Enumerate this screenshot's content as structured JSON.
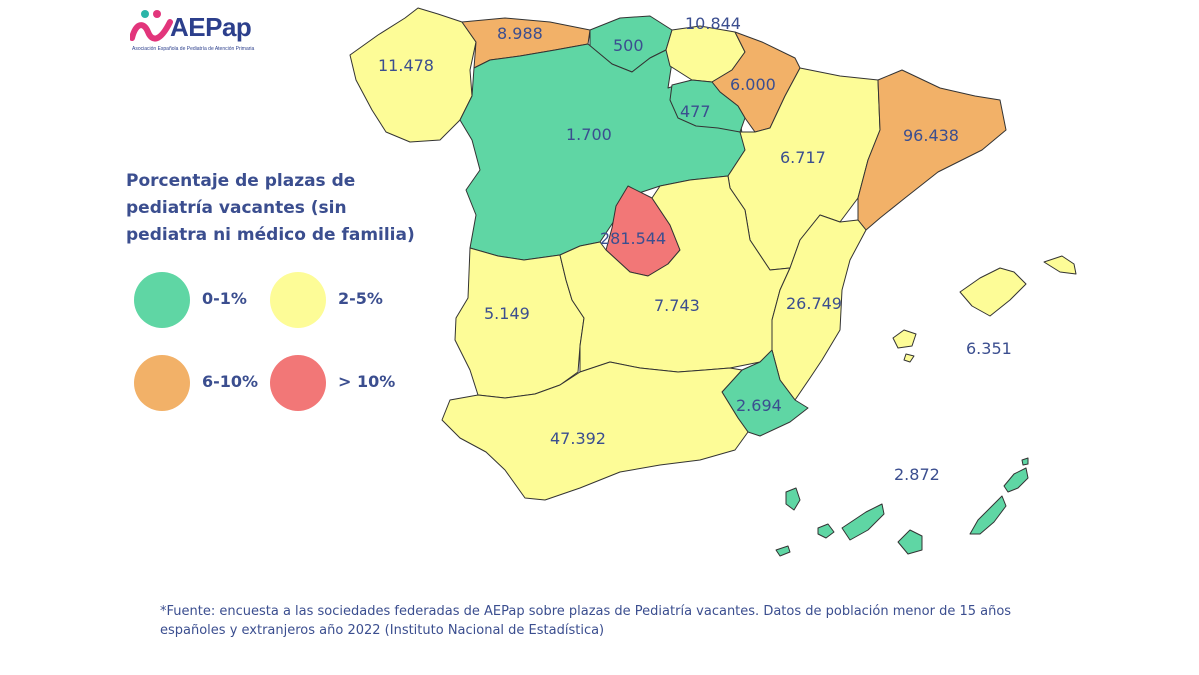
{
  "logo": {
    "text": "AEPap",
    "subtitle": "Asociación Española de Pediatría de Atención Primaria"
  },
  "legend": {
    "title": "Porcentaje de plazas de pediatría vacantes (sin pediatra ni médico de familia)",
    "items": [
      {
        "label": "0-1%",
        "color": "#5fd6a4"
      },
      {
        "label": "2-5%",
        "color": "#fdfc97"
      },
      {
        "label": "6-10%",
        "color": "#f2b168"
      },
      {
        "label": "> 10%",
        "color": "#f27777"
      }
    ]
  },
  "regions": [
    {
      "name": "Galicia",
      "value": "11.478",
      "category": "2-5%"
    },
    {
      "name": "Asturias",
      "value": "8.988",
      "category": "6-10%"
    },
    {
      "name": "Cantabria",
      "value": "500",
      "category": "0-1%"
    },
    {
      "name": "País Vasco",
      "value": "10.844",
      "category": "2-5%"
    },
    {
      "name": "Navarra",
      "value": "6.000",
      "category": "6-10%"
    },
    {
      "name": "La Rioja",
      "value": "477",
      "category": "0-1%"
    },
    {
      "name": "Castilla y León",
      "value": "1.700",
      "category": "0-1%"
    },
    {
      "name": "Aragón",
      "value": "6.717",
      "category": "2-5%"
    },
    {
      "name": "Cataluña",
      "value": "96.438",
      "category": "6-10%"
    },
    {
      "name": "Madrid",
      "value": "281.544",
      "category": "> 10%"
    },
    {
      "name": "Extremadura",
      "value": "5.149",
      "category": "2-5%"
    },
    {
      "name": "Castilla-La Mancha",
      "value": "7.743",
      "category": "2-5%"
    },
    {
      "name": "Comunidad Valenciana",
      "value": "26.749",
      "category": "2-5%"
    },
    {
      "name": "Islas Baleares",
      "value": "6.351",
      "category": "2-5%"
    },
    {
      "name": "Murcia",
      "value": "2.694",
      "category": "0-1%"
    },
    {
      "name": "Andalucía",
      "value": "47.392",
      "category": "2-5%"
    },
    {
      "name": "Canarias",
      "value": "2.872",
      "category": "0-1%"
    }
  ],
  "source": "*Fuente: encuesta a las sociedades federadas de AEPap sobre plazas de Pediatría vacantes. Datos de población menor de 15 años españoles y extranjeros año 2022 (Instituto Nacional de Estadística)"
}
